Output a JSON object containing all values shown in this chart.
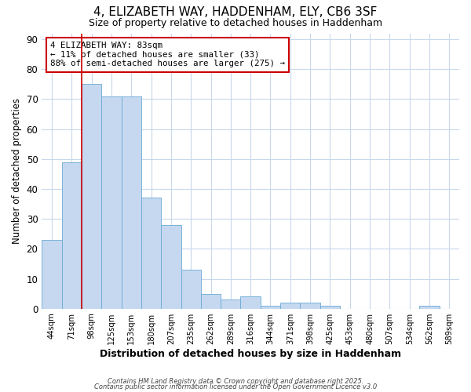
{
  "title1": "4, ELIZABETH WAY, HADDENHAM, ELY, CB6 3SF",
  "title2": "Size of property relative to detached houses in Haddenham",
  "xlabel": "Distribution of detached houses by size in Haddenham",
  "ylabel": "Number of detached properties",
  "categories": [
    "44sqm",
    "71sqm",
    "98sqm",
    "125sqm",
    "153sqm",
    "180sqm",
    "207sqm",
    "235sqm",
    "262sqm",
    "289sqm",
    "316sqm",
    "344sqm",
    "371sqm",
    "398sqm",
    "425sqm",
    "453sqm",
    "480sqm",
    "507sqm",
    "534sqm",
    "562sqm",
    "589sqm"
  ],
  "values": [
    23,
    49,
    75,
    71,
    71,
    37,
    28,
    13,
    5,
    3,
    4,
    1,
    2,
    2,
    1,
    0,
    0,
    0,
    0,
    1,
    0
  ],
  "bar_color": "#c5d8f0",
  "bar_edge_color": "#6aaad4",
  "background_color": "#ffffff",
  "grid_color": "#c8d8ec",
  "vline_color": "#cc0000",
  "annotation_box_color": "#cc0000",
  "ylim": [
    0,
    92
  ],
  "yticks": [
    0,
    10,
    20,
    30,
    40,
    50,
    60,
    70,
    80,
    90
  ],
  "footer1": "Contains HM Land Registry data © Crown copyright and database right 2025.",
  "footer2": "Contains public sector information licensed under the Open Government Licence v3.0"
}
